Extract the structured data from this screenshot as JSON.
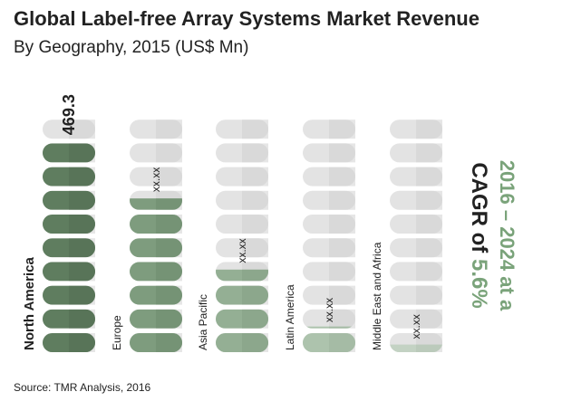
{
  "title": "Global Label-free Array Systems Market Revenue",
  "subtitle": "By Geography, 2015 (US$ Mn)",
  "source": "Source: TMR Analysis, 2016",
  "cagr": {
    "period": "2016 – 2024 at a",
    "prefix": "CAGR of",
    "rate": "5.6%"
  },
  "colors": {
    "empty_pill": "#e3e3e3",
    "empty_pill_shade": "#d2d2d2"
  },
  "chart_data": {
    "type": "bar",
    "categories": [
      "North America",
      "Europe",
      "Asia Pacific",
      "Latin America",
      "Middle East and Africa"
    ],
    "values": [
      469.3,
      null,
      null,
      null,
      null
    ],
    "value_labels": [
      "469.3",
      "xx.xx",
      "xx.xx",
      "xx.xx",
      "xx.xx"
    ],
    "fill_levels": [
      9.0,
      6.6,
      3.6,
      1.1,
      0.4
    ],
    "pill_count": 10,
    "bar_colors": [
      "#5f7d5f",
      "#7e9c7e",
      "#94af94",
      "#adc3ad",
      "#c3d2c3"
    ],
    "bar_shades": [
      "#4f6a4f",
      "#6b896b",
      "#829e82",
      "#9bb19b",
      "#b1c1b1"
    ],
    "title": "Global Label-free Array Systems Market Revenue",
    "subtitle": "By Geography, 2015 (US$ Mn)"
  }
}
